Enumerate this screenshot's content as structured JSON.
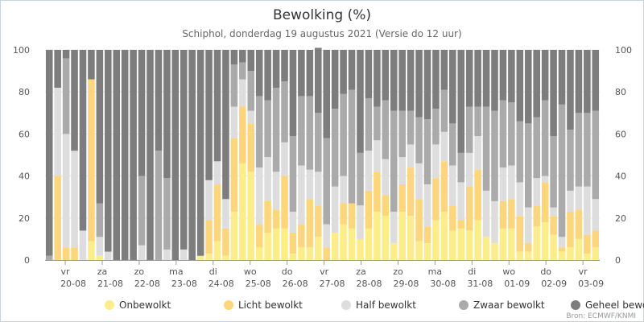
{
  "chart_data": {
    "type": "bar",
    "stacked": true,
    "title": "Bewolking (%)",
    "subtitle": "Schiphol, donderdag 19 augustus 2021 (Versie do 12 uur)",
    "credit": "Bron: ECMWF/KNMI",
    "ylim": [
      0,
      100
    ],
    "yticks": [
      0,
      20,
      40,
      60,
      80,
      100
    ],
    "day_labels": [
      {
        "day": "vr",
        "date": "20-08"
      },
      {
        "day": "za",
        "date": "21-08"
      },
      {
        "day": "zo",
        "date": "22-08"
      },
      {
        "day": "ma",
        "date": "23-08"
      },
      {
        "day": "di",
        "date": "24-08"
      },
      {
        "day": "wo",
        "date": "25-08"
      },
      {
        "day": "do",
        "date": "26-08"
      },
      {
        "day": "vr",
        "date": "27-08"
      },
      {
        "day": "za",
        "date": "28-08"
      },
      {
        "day": "zo",
        "date": "29-08"
      },
      {
        "day": "ma",
        "date": "30-08"
      },
      {
        "day": "di",
        "date": "31-08"
      },
      {
        "day": "wo",
        "date": "01-09"
      },
      {
        "day": "do",
        "date": "02-09"
      },
      {
        "day": "vr",
        "date": "03-09"
      }
    ],
    "colors": [
      "#fbee8a",
      "#fcd67c",
      "#dddddd",
      "#aaaaaa",
      "#7d7d7d"
    ],
    "series": [
      {
        "name": "Onbewolkt",
        "values": [
          0,
          0,
          0,
          0,
          0,
          9,
          2,
          0,
          0,
          0,
          0,
          0,
          0,
          0,
          0,
          0,
          0,
          0,
          2,
          3,
          9,
          2,
          23,
          46,
          42,
          6,
          13,
          15,
          15,
          3,
          6,
          6,
          11,
          0,
          13,
          17,
          15,
          10,
          15,
          23,
          21,
          8,
          23,
          21,
          9,
          8,
          19,
          23,
          14,
          15,
          14,
          19,
          11,
          8,
          15,
          15,
          4,
          4,
          16,
          18,
          12,
          4,
          6,
          10,
          3,
          6
        ]
      },
      {
        "name": "Licht bewolkt",
        "values": [
          0,
          40,
          6,
          6,
          0,
          77,
          0,
          0,
          0,
          0,
          0,
          0,
          0,
          0,
          0,
          0,
          0,
          0,
          0,
          16,
          27,
          13,
          35,
          27,
          23,
          11,
          15,
          9,
          25,
          10,
          11,
          23,
          15,
          6,
          0,
          10,
          12,
          0,
          18,
          19,
          10,
          0,
          13,
          23,
          20,
          8,
          20,
          24,
          12,
          4,
          21,
          24,
          0,
          0,
          13,
          14,
          17,
          4,
          10,
          19,
          9,
          2,
          17,
          14,
          9,
          8
        ]
      },
      {
        "name": "Half bewolkt",
        "values": [
          0,
          42,
          54,
          46,
          14,
          0,
          9,
          4,
          0,
          0,
          0,
          7,
          0,
          0,
          5,
          0,
          5,
          0,
          0,
          19,
          11,
          14,
          15,
          13,
          6,
          27,
          21,
          18,
          16,
          10,
          28,
          14,
          16,
          11,
          22,
          13,
          0,
          16,
          19,
          15,
          17,
          15,
          13,
          11,
          17,
          20,
          16,
          14,
          19,
          18,
          16,
          16,
          22,
          20,
          16,
          16,
          16,
          17,
          13,
          3,
          4,
          5,
          10,
          11,
          23,
          15
        ]
      },
      {
        "name": "Zwaar bewolkt",
        "values": [
          2,
          0,
          36,
          0,
          0,
          0,
          16,
          0,
          0,
          0,
          0,
          33,
          0,
          52,
          34,
          0,
          0,
          0,
          0,
          0,
          0,
          0,
          20,
          8,
          19,
          34,
          27,
          40,
          29,
          36,
          33,
          35,
          28,
          41,
          37,
          39,
          54,
          25,
          25,
          16,
          28,
          48,
          22,
          16,
          22,
          31,
          17,
          20,
          20,
          14,
          22,
          14,
          40,
          43,
          32,
          30,
          29,
          40,
          29,
          36,
          34,
          63,
          29,
          35,
          35,
          42
        ]
      },
      {
        "name": "Geheel bewolkt",
        "values": [
          98,
          18,
          4,
          48,
          86,
          14,
          73,
          96,
          100,
          100,
          100,
          60,
          100,
          48,
          61,
          100,
          95,
          100,
          98,
          62,
          53,
          71,
          7,
          6,
          10,
          22,
          24,
          18,
          15,
          41,
          22,
          22,
          31,
          42,
          28,
          21,
          19,
          49,
          23,
          27,
          24,
          29,
          29,
          29,
          32,
          33,
          28,
          19,
          35,
          49,
          27,
          27,
          27,
          29,
          24,
          25,
          34,
          35,
          32,
          24,
          41,
          26,
          38,
          30,
          30,
          29
        ]
      }
    ]
  },
  "legend_position": "bottom"
}
